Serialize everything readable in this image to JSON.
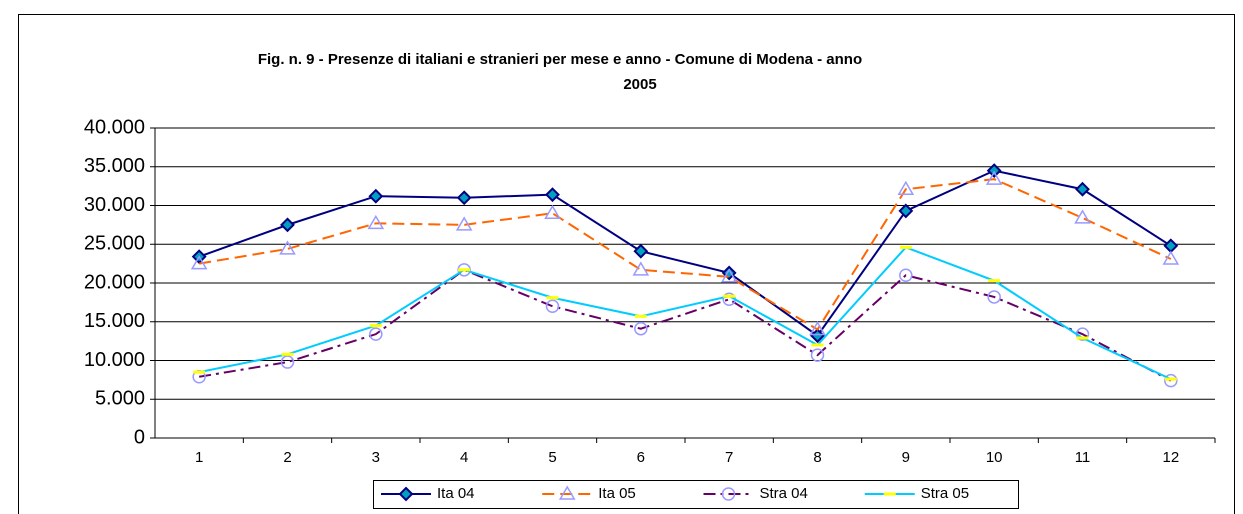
{
  "chart_data": {
    "type": "line",
    "title": [
      "Fig. n. 9  - Presenze di italiani e stranieri per mese e anno - Comune di Modena - anno",
      "2005"
    ],
    "categories": [
      "1",
      "2",
      "3",
      "4",
      "5",
      "6",
      "7",
      "8",
      "9",
      "10",
      "11",
      "12"
    ],
    "series": [
      {
        "name": "Ita 04",
        "color": "#000080",
        "marker": "diamond",
        "dash": "solid",
        "values": [
          23400,
          27500,
          31200,
          31000,
          31400,
          24100,
          21300,
          13200,
          29300,
          34500,
          32100,
          24800
        ]
      },
      {
        "name": "Ita 05",
        "color": "#ff6600",
        "marker": "triangle",
        "dash": "dash",
        "values": [
          22500,
          24400,
          27700,
          27500,
          29000,
          21700,
          20800,
          14000,
          32100,
          33400,
          28400,
          23100
        ]
      },
      {
        "name": "Stra 04",
        "color": "#660066",
        "marker": "circle",
        "dash": "dashdot",
        "values": [
          7900,
          9800,
          13400,
          21700,
          17000,
          14100,
          17900,
          10700,
          21000,
          18200,
          13400,
          7400
        ]
      },
      {
        "name": "Stra 05",
        "color": "#00ccff",
        "marker": "bar",
        "dash": "solid",
        "values": [
          8500,
          10800,
          14500,
          21700,
          18100,
          15700,
          18300,
          12000,
          24600,
          20300,
          12900,
          7600
        ]
      }
    ],
    "ylim": [
      0,
      40000
    ],
    "yticks": [
      0,
      {
        "value": 5000,
        "label": "5.000"
      },
      {
        "value": 10000,
        "label": "10.000"
      },
      {
        "value": 15000,
        "label": "15.000"
      },
      {
        "value": 20000,
        "label": "20.000"
      },
      {
        "value": 25000,
        "label": "25.000"
      },
      {
        "value": 30000,
        "label": "30.000"
      },
      {
        "value": 35000,
        "label": "35.000"
      },
      {
        "value": 40000,
        "label": "40.000"
      }
    ],
    "grid": true,
    "legend": "bottom"
  }
}
